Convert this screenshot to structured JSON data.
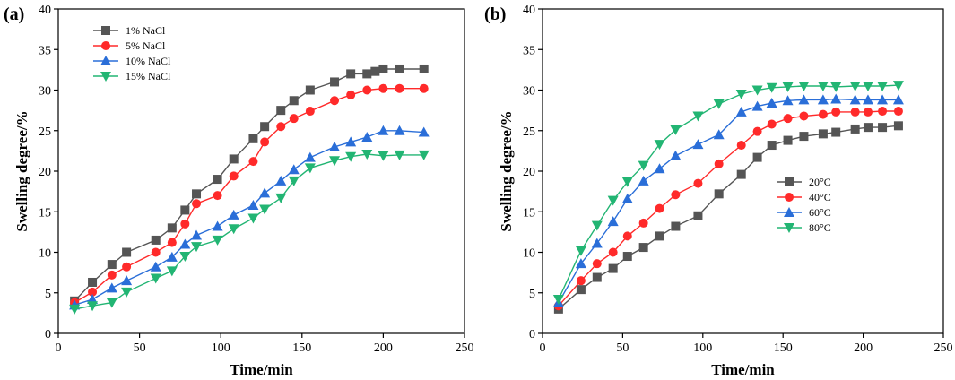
{
  "chart_data": [
    {
      "panel_label": "(a)",
      "type": "line",
      "xlabel": "Time/min",
      "ylabel": "Swelling degree/%",
      "xlim": [
        0,
        250
      ],
      "ylim": [
        0,
        40
      ],
      "xticks": [
        "0",
        "50",
        "100",
        "150",
        "200",
        "250"
      ],
      "yticks": [
        "0",
        "5",
        "10",
        "15",
        "20",
        "25",
        "30",
        "35",
        "40"
      ],
      "legend_position": "top-left",
      "series": [
        {
          "name": "1% NaCl",
          "color": "#555555",
          "marker": "square",
          "x": [
            10,
            21,
            33,
            42,
            60,
            70,
            78,
            85,
            98,
            108,
            120,
            127,
            137,
            145,
            155,
            170,
            180,
            190,
            195,
            200,
            210,
            225
          ],
          "y": [
            4.0,
            6.3,
            8.5,
            10.0,
            11.5,
            13.0,
            15.2,
            17.2,
            19.0,
            21.5,
            24.0,
            25.5,
            27.5,
            28.7,
            30.0,
            31.0,
            32.0,
            32.0,
            32.3,
            32.6,
            32.6,
            32.6
          ]
        },
        {
          "name": "5% NaCl",
          "color": "#ff2a2a",
          "marker": "circle",
          "x": [
            10,
            21,
            33,
            42,
            60,
            70,
            78,
            85,
            98,
            108,
            120,
            127,
            137,
            145,
            155,
            170,
            180,
            190,
            200,
            210,
            225
          ],
          "y": [
            3.8,
            5.1,
            7.2,
            8.2,
            10.0,
            11.2,
            13.5,
            16.0,
            17.0,
            19.4,
            21.2,
            23.6,
            25.5,
            26.5,
            27.4,
            28.7,
            29.4,
            30.0,
            30.2,
            30.2,
            30.2
          ]
        },
        {
          "name": "10% NaCl",
          "color": "#2a6ed8",
          "marker": "triangle-up",
          "x": [
            10,
            21,
            33,
            42,
            60,
            70,
            78,
            85,
            98,
            108,
            120,
            127,
            137,
            145,
            155,
            170,
            180,
            190,
            200,
            210,
            225
          ],
          "y": [
            3.5,
            4.2,
            5.6,
            6.5,
            8.2,
            9.4,
            11.0,
            12.1,
            13.2,
            14.6,
            15.8,
            17.3,
            18.8,
            20.2,
            21.7,
            23.0,
            23.6,
            24.2,
            25.0,
            25.0,
            24.8
          ]
        },
        {
          "name": "15% NaCl",
          "color": "#22b573",
          "marker": "triangle-down",
          "x": [
            10,
            21,
            33,
            42,
            60,
            70,
            78,
            85,
            98,
            108,
            120,
            127,
            137,
            145,
            155,
            170,
            180,
            190,
            200,
            210,
            225
          ],
          "y": [
            3.0,
            3.4,
            3.8,
            5.1,
            6.8,
            7.7,
            9.5,
            10.7,
            11.5,
            12.9,
            14.2,
            15.3,
            16.7,
            18.8,
            20.4,
            21.3,
            21.8,
            22.1,
            21.9,
            22.0,
            22.0
          ]
        }
      ]
    },
    {
      "panel_label": "(b)",
      "type": "line",
      "xlabel": "Time/min",
      "ylabel": "Swelling degree/%",
      "xlim": [
        0,
        250
      ],
      "ylim": [
        0,
        40
      ],
      "xticks": [
        "0",
        "50",
        "100",
        "150",
        "200",
        "250"
      ],
      "yticks": [
        "0",
        "5",
        "10",
        "15",
        "20",
        "25",
        "30",
        "35",
        "40"
      ],
      "legend_position": "center-right",
      "series": [
        {
          "name": "20°C",
          "color": "#555555",
          "marker": "square",
          "x": [
            10,
            24,
            34,
            44,
            53,
            63,
            73,
            83,
            97,
            110,
            124,
            134,
            143,
            153,
            163,
            175,
            183,
            195,
            203,
            212,
            222
          ],
          "y": [
            3.0,
            5.4,
            6.9,
            8.0,
            9.5,
            10.6,
            12.0,
            13.2,
            14.5,
            17.2,
            19.6,
            21.7,
            23.2,
            23.8,
            24.3,
            24.6,
            24.8,
            25.2,
            25.4,
            25.4,
            25.6
          ]
        },
        {
          "name": "40°C",
          "color": "#ff2a2a",
          "marker": "circle",
          "x": [
            10,
            24,
            34,
            44,
            53,
            63,
            73,
            83,
            97,
            110,
            124,
            134,
            143,
            153,
            163,
            175,
            183,
            195,
            203,
            212,
            222
          ],
          "y": [
            3.4,
            6.5,
            8.6,
            10.0,
            12.0,
            13.6,
            15.4,
            17.1,
            18.5,
            20.9,
            23.2,
            24.9,
            25.8,
            26.5,
            26.8,
            27.0,
            27.3,
            27.3,
            27.3,
            27.4,
            27.4
          ]
        },
        {
          "name": "60°C",
          "color": "#2a6ed8",
          "marker": "triangle-up",
          "x": [
            10,
            24,
            34,
            44,
            53,
            63,
            73,
            83,
            97,
            110,
            124,
            134,
            143,
            153,
            163,
            175,
            183,
            195,
            203,
            212,
            222
          ],
          "y": [
            3.8,
            8.6,
            11.1,
            13.8,
            16.6,
            18.8,
            20.3,
            21.9,
            23.3,
            24.5,
            27.3,
            28.0,
            28.4,
            28.7,
            28.8,
            28.8,
            28.9,
            28.8,
            28.8,
            28.8,
            28.8
          ]
        },
        {
          "name": "80°C",
          "color": "#22b573",
          "marker": "triangle-down",
          "x": [
            10,
            24,
            34,
            44,
            53,
            63,
            73,
            83,
            97,
            110,
            124,
            134,
            143,
            153,
            163,
            175,
            183,
            195,
            203,
            212,
            222
          ],
          "y": [
            4.2,
            10.2,
            13.3,
            16.4,
            18.7,
            20.7,
            23.3,
            25.1,
            26.8,
            28.3,
            29.5,
            30.0,
            30.3,
            30.4,
            30.5,
            30.5,
            30.4,
            30.5,
            30.5,
            30.5,
            30.6
          ]
        }
      ]
    }
  ]
}
